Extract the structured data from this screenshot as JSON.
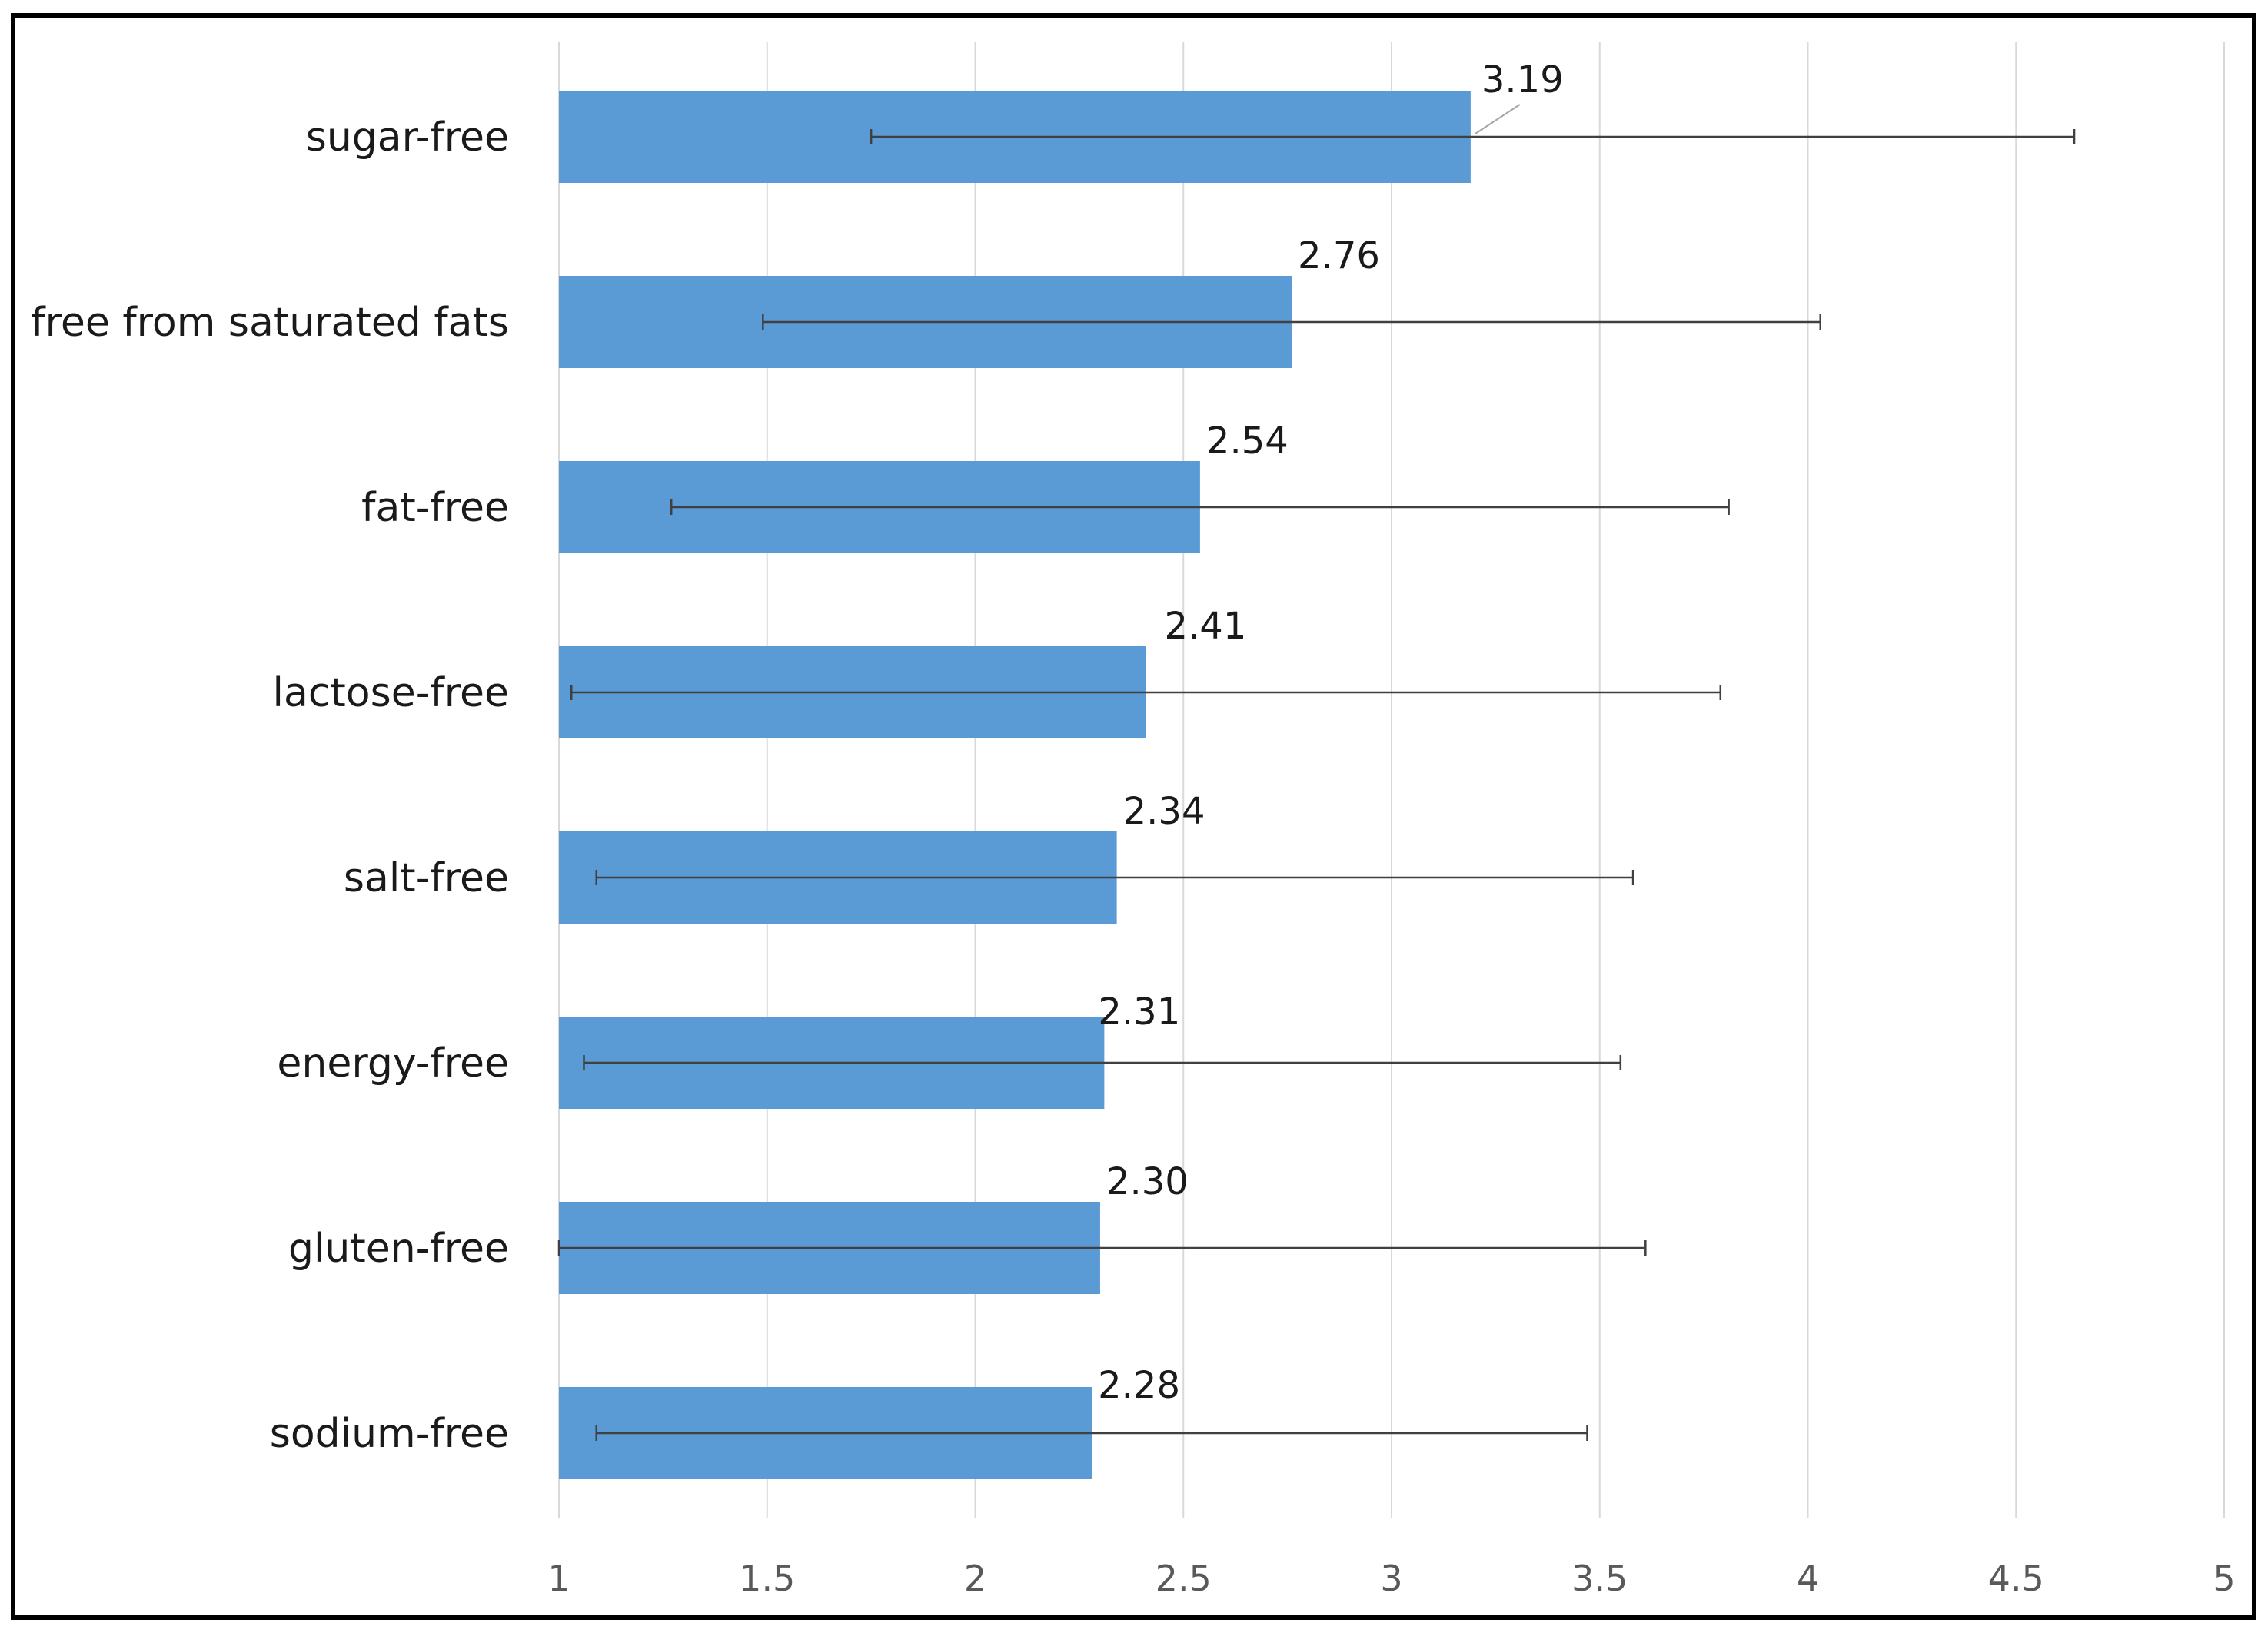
{
  "chart_data": {
    "type": "bar",
    "orientation": "horizontal",
    "title": "",
    "xlabel": "",
    "ylabel": "",
    "categories": [
      "sugar-free",
      "free from saturated fats",
      "fat-free",
      "lactose-free",
      "salt-free",
      "energy-free",
      "gluten-free",
      "sodium-free"
    ],
    "values": [
      3.19,
      2.76,
      2.54,
      2.41,
      2.34,
      2.31,
      2.3,
      2.28
    ],
    "value_labels": [
      "3.19",
      "2.76",
      "2.54",
      "2.41",
      "2.34",
      "2.31",
      "2.30",
      "2.28"
    ],
    "error_bars": [
      {
        "low": 1.75,
        "high": 4.64
      },
      {
        "low": 1.49,
        "high": 4.03
      },
      {
        "low": 1.27,
        "high": 3.81
      },
      {
        "low": 1.03,
        "high": 3.79
      },
      {
        "low": 1.09,
        "high": 3.58
      },
      {
        "low": 1.06,
        "high": 3.55
      },
      {
        "low": 1.0,
        "high": 3.61
      },
      {
        "low": 1.09,
        "high": 3.47
      }
    ],
    "xlim": [
      1,
      5
    ],
    "x_ticks": [
      1,
      1.5,
      2,
      2.5,
      3,
      3.5,
      4,
      4.5,
      5
    ],
    "x_tick_labels": [
      "1",
      "1.5",
      "2",
      "2.5",
      "3",
      "3.5",
      "4",
      "4.5",
      "5"
    ],
    "grid": "vertical",
    "legend": "none",
    "colors": {
      "bar": "#5b9bd5",
      "error_bar": "#404040",
      "gridline": "#d9d9d9",
      "frame": "#000000"
    }
  }
}
